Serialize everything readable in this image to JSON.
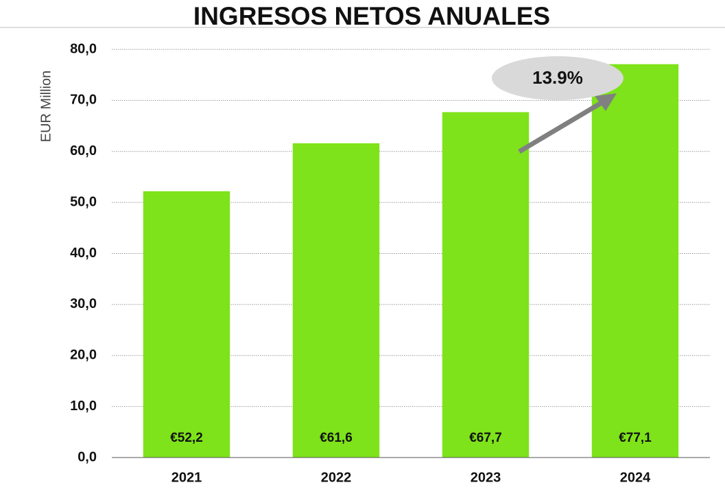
{
  "chart_data": {
    "type": "bar",
    "title": "INGRESOS NETOS ANUALES",
    "y_label": "EUR Million",
    "categories": [
      "2021",
      "2022",
      "2023",
      "2024"
    ],
    "values": [
      52.2,
      61.6,
      67.7,
      77.1
    ],
    "value_labels": [
      "€52,2",
      "€61,6",
      "€67,7",
      "€77,1"
    ],
    "color": "#7ee31a",
    "ylim": [
      0,
      80
    ],
    "yticks": [
      {
        "value": 0,
        "label": "0,0"
      },
      {
        "value": 10,
        "label": "10,0"
      },
      {
        "value": 20,
        "label": "20,0"
      },
      {
        "value": 30,
        "label": "30,0"
      },
      {
        "value": 40,
        "label": "40,0"
      },
      {
        "value": 50,
        "label": "50,0"
      },
      {
        "value": 60,
        "label": "60,0"
      },
      {
        "value": 70,
        "label": "70,0"
      },
      {
        "value": 80,
        "label": "80,0"
      }
    ],
    "grid": true,
    "annotation": "13.9%"
  }
}
